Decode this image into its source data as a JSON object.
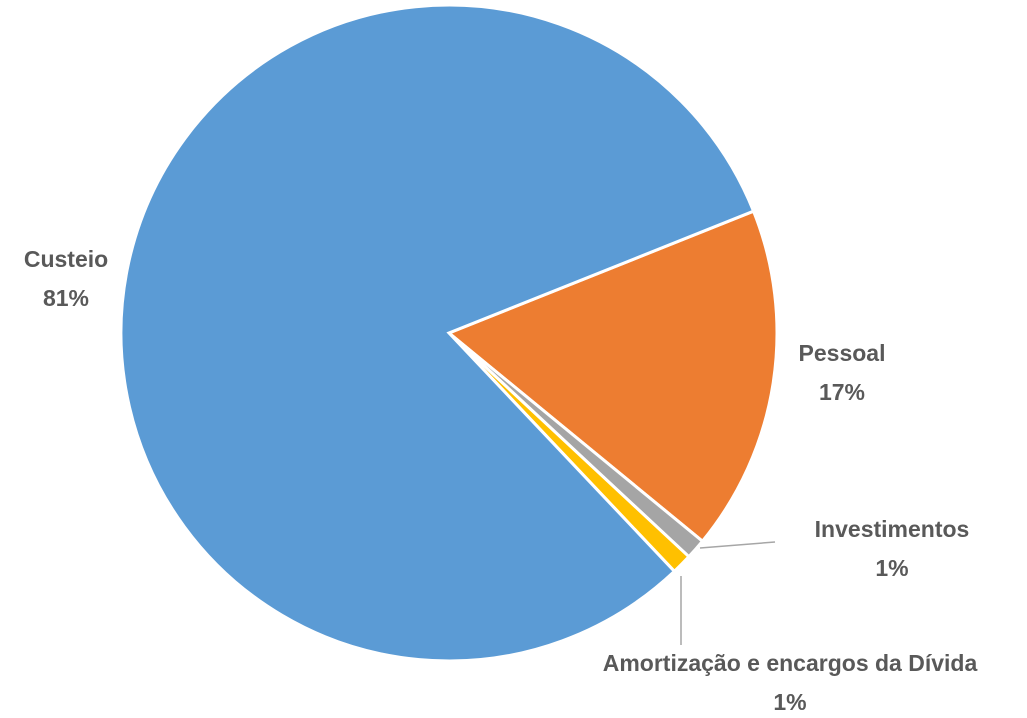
{
  "chart_data": {
    "type": "pie",
    "categories": [
      "Pessoal",
      "Investimentos",
      "Amortização e encargos da Dívida",
      "Custeio"
    ],
    "values": [
      17,
      1,
      1,
      81
    ],
    "value_labels": [
      "17%",
      "1%",
      "1%",
      "81%"
    ],
    "colors": [
      "#ed7d31",
      "#a5a5a5",
      "#ffc000",
      "#5b9bd5"
    ]
  }
}
